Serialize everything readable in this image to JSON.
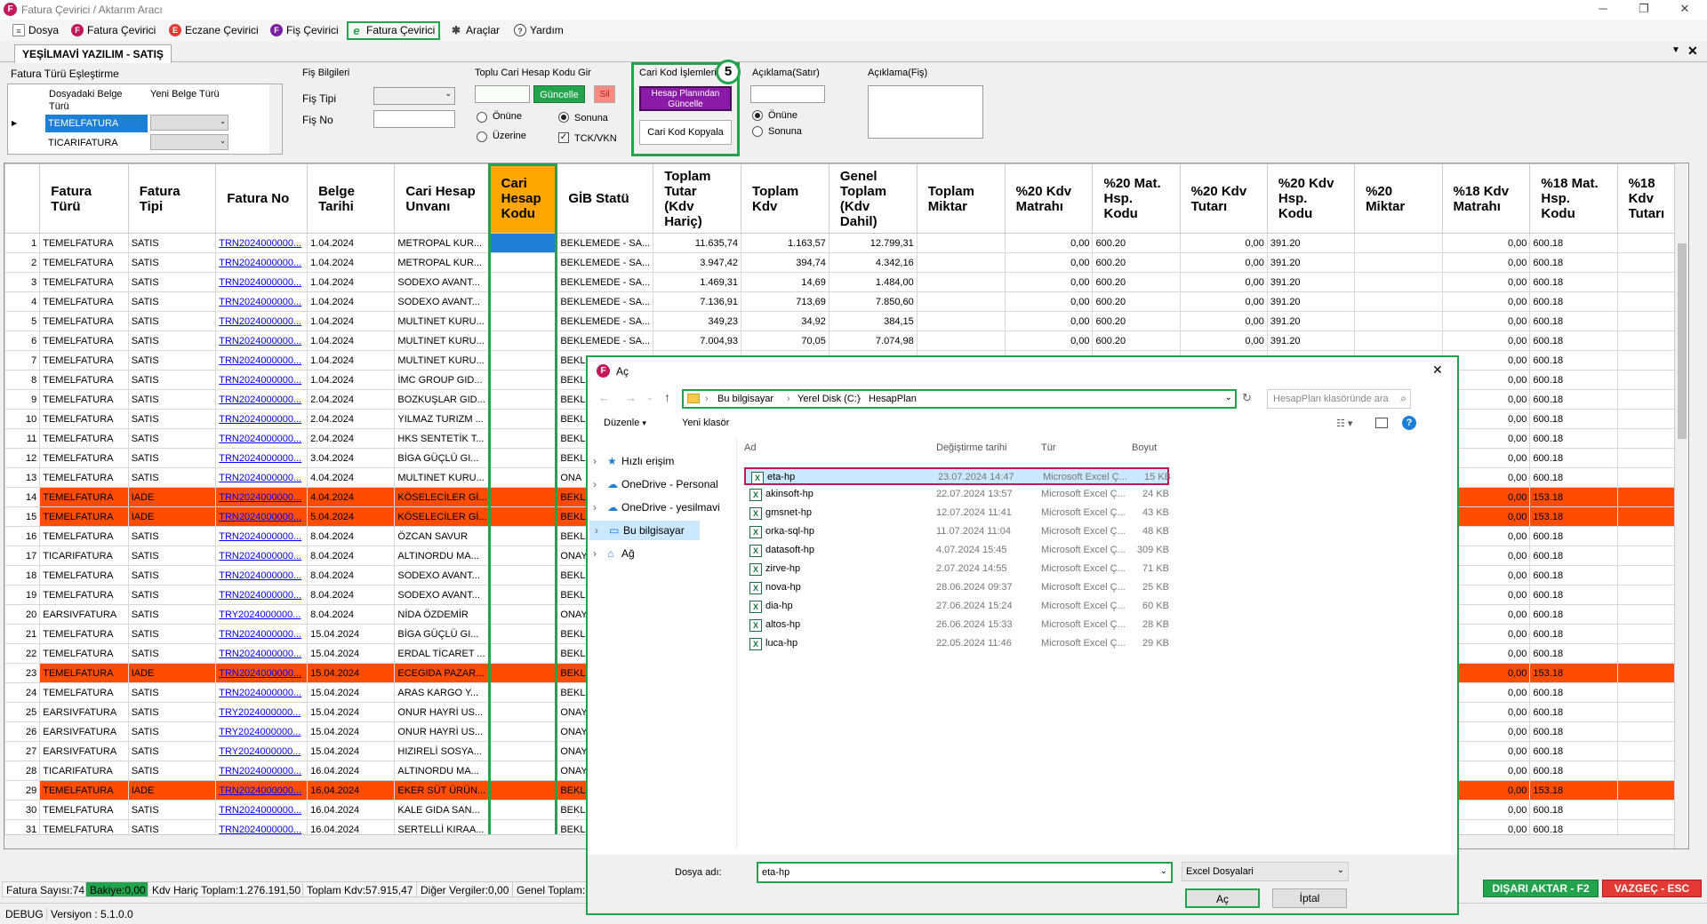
{
  "window": {
    "title": "Fatura Çevirici / Aktarım Aracı",
    "app_icon": "F"
  },
  "menu": [
    {
      "label": "Dosya",
      "icon": "document-icon",
      "color": "#9e9e9e"
    },
    {
      "label": "Fatura Çevirici",
      "icon": "F",
      "color": "#c2185b"
    },
    {
      "label": "Eczane Çevirici",
      "icon": "E",
      "color": "#e53935"
    },
    {
      "label": "Fiş Çevirici",
      "icon": "F",
      "color": "#7b1fa2"
    },
    {
      "label": "Fatura Çevirici",
      "icon": "e",
      "color": "#21a44c"
    },
    {
      "label": "Araçlar",
      "icon": "tools-icon",
      "color": "#444"
    },
    {
      "label": "Yardım",
      "icon": "help-icon",
      "color": "#444"
    }
  ],
  "tab": {
    "label": "YEŞİLMAVİ YAZILIM - SATIŞ"
  },
  "mapping": {
    "title": "Fatura Türü Eşleştirme",
    "col1": "Dosyadaki Belge Türü",
    "col2": "Yeni Belge Türü",
    "rows": [
      "TEMELFATURA",
      "TICARIFATURA"
    ]
  },
  "fis": {
    "title": "Fiş Bilgileri",
    "tip_label": "Fiş Tipi",
    "no_label": "Fiş No"
  },
  "toplu": {
    "title": "Toplu Cari Hesap Kodu Gir",
    "update": "Güncelle",
    "delete": "Sil",
    "r1": "Önüne",
    "r2": "Sonuna",
    "r3": "Üzerine",
    "chk": "TCK/VKN"
  },
  "carikod": {
    "title": "Cari Kod İşlemleri",
    "btn1": "Hesap Planından Güncelle",
    "btn2": "Cari Kod Kopyala",
    "step": "5"
  },
  "aciklama_satir": {
    "title": "Açıklama(Satır)",
    "r1": "Önüne",
    "r2": "Sonuna"
  },
  "aciklama_fis": {
    "title": "Açıklama(Fiş)"
  },
  "grid": {
    "headers": [
      "Fatura Türü",
      "Fatura Tipi",
      "Fatura No",
      "Belge Tarihi",
      "Cari Hesap Unvanı",
      "Cari Hesap Kodu",
      "GİB Statü",
      "Toplam Tutar (Kdv Hariç)",
      "Toplam Kdv",
      "Genel Toplam (Kdv Dahil)",
      "Toplam Miktar",
      "%20 Kdv Matrahı",
      "%20 Mat. Hsp. Kodu",
      "%20 Kdv Tutarı",
      "%20 Kdv Hsp. Kodu",
      "%20 Miktar",
      "%18 Kdv Matrahı",
      "%18 Mat. Hsp. Kodu",
      "%18 Kdv Tutarı"
    ],
    "rows": [
      [
        "1",
        "TEMELFATURA",
        "SATIS",
        "TRN2024000000...",
        "1.04.2024",
        "METROPAL KUR...",
        "",
        "BEKLEMEDE - SA...",
        "11.635,74",
        "1.163,57",
        "12.799,31",
        "",
        "0,00",
        "600.20",
        "0,00",
        "391.20",
        "",
        "0,00",
        "600.18",
        ""
      ],
      [
        "2",
        "TEMELFATURA",
        "SATIS",
        "TRN2024000000...",
        "1.04.2024",
        "METROPAL KUR...",
        "",
        "BEKLEMEDE - SA...",
        "3.947,42",
        "394,74",
        "4.342,16",
        "",
        "0,00",
        "600.20",
        "0,00",
        "391.20",
        "",
        "0,00",
        "600.18",
        ""
      ],
      [
        "3",
        "TEMELFATURA",
        "SATIS",
        "TRN2024000000...",
        "1.04.2024",
        "SODEXO AVANT...",
        "",
        "BEKLEMEDE - SA...",
        "1.469,31",
        "14,69",
        "1.484,00",
        "",
        "0,00",
        "600.20",
        "0,00",
        "391.20",
        "",
        "0,00",
        "600.18",
        ""
      ],
      [
        "4",
        "TEMELFATURA",
        "SATIS",
        "TRN2024000000...",
        "1.04.2024",
        "SODEXO AVANT...",
        "",
        "BEKLEMEDE - SA...",
        "7.136,91",
        "713,69",
        "7.850,60",
        "",
        "0,00",
        "600.20",
        "0,00",
        "391.20",
        "",
        "0,00",
        "600.18",
        ""
      ],
      [
        "5",
        "TEMELFATURA",
        "SATIS",
        "TRN2024000000...",
        "1.04.2024",
        "MULTINET KURU...",
        "",
        "BEKLEMEDE - SA...",
        "349,23",
        "34,92",
        "384,15",
        "",
        "0,00",
        "600.20",
        "0,00",
        "391.20",
        "",
        "0,00",
        "600.18",
        ""
      ],
      [
        "6",
        "TEMELFATURA",
        "SATIS",
        "TRN2024000000...",
        "1.04.2024",
        "MULTINET KURU...",
        "",
        "BEKLEMEDE - SA...",
        "7.004,93",
        "70,05",
        "7.074,98",
        "",
        "0,00",
        "600.20",
        "0,00",
        "391.20",
        "",
        "0,00",
        "600.18",
        ""
      ],
      [
        "7",
        "TEMELFATURA",
        "SATIS",
        "TRN2024000000...",
        "1.04.2024",
        "MULTINET KURU...",
        "",
        "BEKL",
        "",
        "",
        "",
        "",
        "",
        "",
        "",
        "",
        "",
        "0,00",
        "600.18",
        ""
      ],
      [
        "8",
        "TEMELFATURA",
        "SATIS",
        "TRN2024000000...",
        "1.04.2024",
        "İMC GROUP GID...",
        "",
        "BEKL",
        "",
        "",
        "",
        "",
        "",
        "",
        "",
        "",
        "",
        "0,00",
        "600.18",
        ""
      ],
      [
        "9",
        "TEMELFATURA",
        "SATIS",
        "TRN2024000000...",
        "2.04.2024",
        "BOZKUŞLAR GID...",
        "",
        "BEKL",
        "",
        "",
        "",
        "",
        "",
        "",
        "",
        "",
        "",
        "0,00",
        "600.18",
        ""
      ],
      [
        "10",
        "TEMELFATURA",
        "SATIS",
        "TRN2024000000...",
        "2.04.2024",
        "YILMAZ TURIZM ...",
        "",
        "BEKL",
        "",
        "",
        "",
        "",
        "",
        "",
        "",
        "",
        "",
        "0,00",
        "600.18",
        ""
      ],
      [
        "11",
        "TEMELFATURA",
        "SATIS",
        "TRN2024000000...",
        "2.04.2024",
        "HKS SENTETİK T...",
        "",
        "BEKL",
        "",
        "",
        "",
        "",
        "",
        "",
        "",
        "",
        "",
        "0,00",
        "600.18",
        ""
      ],
      [
        "12",
        "TEMELFATURA",
        "SATIS",
        "TRN2024000000...",
        "3.04.2024",
        "BİGA GÜÇLÜ GI...",
        "",
        "BEKL",
        "",
        "",
        "",
        "",
        "",
        "",
        "",
        "",
        "",
        "0,00",
        "600.18",
        ""
      ],
      [
        "13",
        "TEMELFATURA",
        "SATIS",
        "TRN2024000000...",
        "4.04.2024",
        "MULTINET KURU...",
        "",
        "ONA",
        "",
        "",
        "",
        "",
        "",
        "",
        "",
        "",
        "",
        "0,00",
        "600.18",
        ""
      ],
      [
        "14",
        "TEMELFATURA",
        "IADE",
        "TRN2024000000...",
        "4.04.2024",
        "KÖSELECİLER Gİ...",
        "",
        "BEKL",
        "",
        "",
        "",
        "",
        "",
        "",
        "",
        "",
        "",
        "0,00",
        "153.18",
        ""
      ],
      [
        "15",
        "TEMELFATURA",
        "IADE",
        "TRN2024000000...",
        "5.04.2024",
        "KÖSELECİLER Gİ...",
        "",
        "BEKL",
        "",
        "",
        "",
        "",
        "",
        "",
        "",
        "",
        "",
        "0,00",
        "153.18",
        ""
      ],
      [
        "16",
        "TEMELFATURA",
        "SATIS",
        "TRN2024000000...",
        "8.04.2024",
        "ÖZCAN SAVUR",
        "",
        "BEKL",
        "",
        "",
        "",
        "",
        "",
        "",
        "",
        "",
        "",
        "0,00",
        "600.18",
        ""
      ],
      [
        "17",
        "TICARIFATURA",
        "SATIS",
        "TRN2024000000...",
        "8.04.2024",
        "ALTINORDU MA...",
        "",
        "ONAY",
        "",
        "",
        "",
        "",
        "",
        "",
        "",
        "",
        "",
        "0,00",
        "600.18",
        ""
      ],
      [
        "18",
        "TEMELFATURA",
        "SATIS",
        "TRN2024000000...",
        "8.04.2024",
        "SODEXO AVANT...",
        "",
        "BEKL",
        "",
        "",
        "",
        "",
        "",
        "",
        "",
        "",
        "",
        "0,00",
        "600.18",
        ""
      ],
      [
        "19",
        "TEMELFATURA",
        "SATIS",
        "TRN2024000000...",
        "8.04.2024",
        "SODEXO AVANT...",
        "",
        "BEKL",
        "",
        "",
        "",
        "",
        "",
        "",
        "",
        "",
        "",
        "0,00",
        "600.18",
        ""
      ],
      [
        "20",
        "EARSIVFATURA",
        "SATIS",
        "TRY2024000000...",
        "8.04.2024",
        "NİDA ÖZDEMİR",
        "",
        "ONAY",
        "",
        "",
        "",
        "",
        "",
        "",
        "",
        "",
        "",
        "0,00",
        "600.18",
        ""
      ],
      [
        "21",
        "TEMELFATURA",
        "SATIS",
        "TRN2024000000...",
        "15.04.2024",
        "BİGA GÜÇLÜ GI...",
        "",
        "BEKL",
        "",
        "",
        "",
        "",
        "",
        "",
        "",
        "",
        "",
        "0,00",
        "600.18",
        ""
      ],
      [
        "22",
        "TEMELFATURA",
        "SATIS",
        "TRN2024000000...",
        "15.04.2024",
        "ERDAL TİCARET ...",
        "",
        "BEKL",
        "",
        "",
        "",
        "",
        "",
        "",
        "",
        "",
        "",
        "0,00",
        "600.18",
        ""
      ],
      [
        "23",
        "TEMELFATURA",
        "IADE",
        "TRN2024000000...",
        "15.04.2024",
        "ECEGIDA PAZAR...",
        "",
        "BEKL",
        "",
        "",
        "",
        "",
        "",
        "",
        "",
        "",
        "",
        "0,00",
        "153.18",
        ""
      ],
      [
        "24",
        "TEMELFATURA",
        "SATIS",
        "TRN2024000000...",
        "15.04.2024",
        "ARAS KARGO Y...",
        "",
        "BEKL",
        "",
        "",
        "",
        "",
        "",
        "",
        "",
        "",
        "",
        "0,00",
        "600.18",
        ""
      ],
      [
        "25",
        "EARSIVFATURA",
        "SATIS",
        "TRY2024000000...",
        "15.04.2024",
        "ONUR HAYRİ US...",
        "",
        "ONAY",
        "",
        "",
        "",
        "",
        "",
        "",
        "",
        "",
        "",
        "0,00",
        "600.18",
        ""
      ],
      [
        "26",
        "EARSIVFATURA",
        "SATIS",
        "TRY2024000000...",
        "15.04.2024",
        "ONUR HAYRİ US...",
        "",
        "ONAY",
        "",
        "",
        "",
        "",
        "",
        "",
        "",
        "",
        "",
        "0,00",
        "600.18",
        ""
      ],
      [
        "27",
        "EARSIVFATURA",
        "SATIS",
        "TRY2024000000...",
        "15.04.2024",
        "HIZIRELİ SOSYA...",
        "",
        "ONAY",
        "",
        "",
        "",
        "",
        "",
        "",
        "",
        "",
        "",
        "0,00",
        "600.18",
        ""
      ],
      [
        "28",
        "TICARIFATURA",
        "SATIS",
        "TRN2024000000...",
        "16.04.2024",
        "ALTINORDU MA...",
        "",
        "ONAY",
        "",
        "",
        "",
        "",
        "",
        "",
        "",
        "",
        "",
        "0,00",
        "600.18",
        ""
      ],
      [
        "29",
        "TEMELFATURA",
        "IADE",
        "TRN2024000000...",
        "16.04.2024",
        "EKER SÜT ÜRÜN...",
        "",
        "BEKL",
        "",
        "",
        "",
        "",
        "",
        "",
        "",
        "",
        "",
        "0,00",
        "153.18",
        ""
      ],
      [
        "30",
        "TEMELFATURA",
        "SATIS",
        "TRN2024000000...",
        "16.04.2024",
        "KALE GIDA SAN...",
        "",
        "BEKL",
        "",
        "",
        "",
        "",
        "",
        "",
        "",
        "",
        "",
        "0,00",
        "600.18",
        ""
      ],
      [
        "31",
        "TEMELFATURA",
        "SATIS",
        "TRN2024000000...",
        "16.04.2024",
        "SERTELLİ KIRAA...",
        "",
        "BEKL",
        "",
        "",
        "",
        "",
        "",
        "",
        "",
        "",
        "",
        "0,00",
        "600.18",
        ""
      ]
    ],
    "iade_rows": [
      14,
      15,
      23,
      29
    ]
  },
  "footer": {
    "count": "Fatura Sayısı:74",
    "bakiye": "Bakiye:0,00",
    "kdv_haric": "Kdv Hariç Toplam:1.276.191,50",
    "toplam_kdv": "Toplam Kdv:57.915,47",
    "diger": "Diğer Vergiler:0,00",
    "genel": "Genel Toplam:",
    "export": "DIŞARI AKTAR - F2",
    "cancel": "VAZGEÇ - ESC"
  },
  "statusbar": {
    "mode": "DEBUG",
    "version": "Versiyon : 5.1.0.0"
  },
  "dialog": {
    "title": "Aç",
    "path": [
      "Bu bilgisayar",
      "Yerel Disk (C:)",
      "HesapPlan"
    ],
    "search_placeholder": "HesapPlan klasöründe ara",
    "organize": "Düzenle",
    "new_folder": "Yeni klasör",
    "cols": [
      "Ad",
      "Değiştirme tarihi",
      "Tür",
      "Boyut"
    ],
    "nav": [
      "Hızlı erişim",
      "OneDrive - Personal",
      "OneDrive - yesilmavi",
      "Bu bilgisayar",
      "Ağ"
    ],
    "files": [
      [
        "eta-hp",
        "23.07.2024 14:47",
        "Microsoft Excel Ç...",
        "15 KB"
      ],
      [
        "akinsoft-hp",
        "22.07.2024 13:57",
        "Microsoft Excel Ç...",
        "24 KB"
      ],
      [
        "gmsnet-hp",
        "12.07.2024 11:41",
        "Microsoft Excel Ç...",
        "43 KB"
      ],
      [
        "orka-sql-hp",
        "11.07.2024 11:04",
        "Microsoft Excel Ç...",
        "48 KB"
      ],
      [
        "datasoft-hp",
        "4.07.2024 15:45",
        "Microsoft Excel Ç...",
        "309 KB"
      ],
      [
        "zirve-hp",
        "2.07.2024 14:55",
        "Microsoft Excel Ç...",
        "71 KB"
      ],
      [
        "nova-hp",
        "28.06.2024 09:37",
        "Microsoft Excel Ç...",
        "25 KB"
      ],
      [
        "dia-hp",
        "27.06.2024 15:24",
        "Microsoft Excel Ç...",
        "60 KB"
      ],
      [
        "altos-hp",
        "26.06.2024 15:33",
        "Microsoft Excel Ç...",
        "28 KB"
      ],
      [
        "luca-hp",
        "22.05.2024 11:46",
        "Microsoft Excel Ç...",
        "29 KB"
      ]
    ],
    "filename_label": "Dosya adı:",
    "filename_value": "eta-hp",
    "filter": "Excel Dosyalari",
    "open": "Aç",
    "cancel": "İptal"
  },
  "colors": {
    "accent_green": "#21a44c",
    "iade_row": "#ff4d00",
    "cari_header": "#ffa500",
    "selected_cell": "#1e7fd6",
    "purple_btn": "#8b1aa8",
    "export_btn": "#21a44c",
    "cancel_btn": "#e53935"
  }
}
